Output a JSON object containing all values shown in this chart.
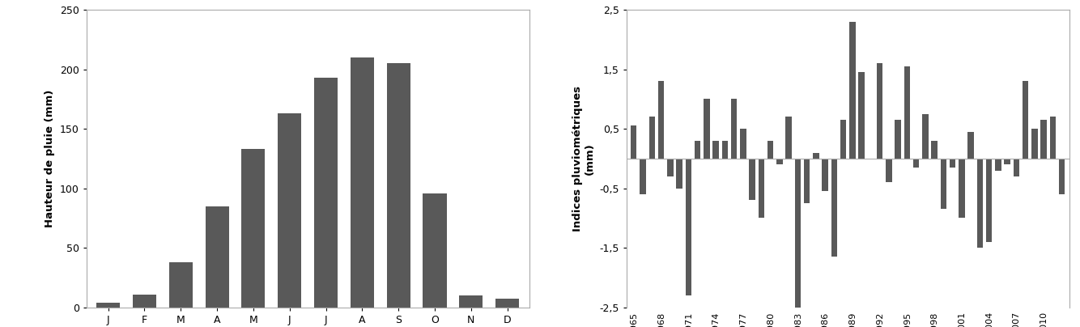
{
  "bar_chart": {
    "months": [
      "J",
      "F",
      "M",
      "A",
      "M",
      "J",
      "J",
      "A",
      "S",
      "O",
      "N",
      "D"
    ],
    "values": [
      4,
      11,
      38,
      85,
      133,
      163,
      193,
      210,
      205,
      96,
      10,
      7
    ],
    "bar_color": "#595959",
    "ylabel": "Hauteur de pluie (mm)",
    "ylim": [
      0,
      250
    ],
    "yticks": [
      0,
      50,
      100,
      150,
      200,
      250
    ]
  },
  "index_chart": {
    "years": [
      1965,
      1966,
      1967,
      1968,
      1969,
      1970,
      1971,
      1972,
      1973,
      1974,
      1975,
      1976,
      1977,
      1978,
      1979,
      1980,
      1981,
      1982,
      1983,
      1984,
      1985,
      1986,
      1987,
      1988,
      1989,
      1990,
      1991,
      1992,
      1993,
      1994,
      1995,
      1996,
      1997,
      1998,
      1999,
      2000,
      2001,
      2002,
      2003,
      2004,
      2005,
      2006,
      2007,
      2008,
      2009,
      2010,
      2011,
      2012
    ],
    "values": [
      0.55,
      -0.6,
      0.7,
      1.3,
      -0.3,
      -0.5,
      -2.3,
      0.3,
      1.0,
      0.3,
      0.3,
      1.0,
      0.5,
      -0.7,
      -1.0,
      0.3,
      -0.1,
      0.7,
      -2.55,
      -0.75,
      0.1,
      -0.55,
      -1.65,
      0.65,
      2.3,
      1.45,
      0.0,
      1.6,
      -0.4,
      0.65,
      1.55,
      -0.15,
      0.75,
      0.3,
      -0.85,
      -0.15,
      -1.0,
      0.45,
      -1.5,
      -1.4,
      -0.2,
      -0.1,
      -0.3,
      1.3,
      0.5,
      0.65,
      0.7,
      -0.6
    ],
    "bar_color": "#595959",
    "ylabel": "Indices pluviométriques\n(mm)",
    "ylim": [
      -2.5,
      2.5
    ],
    "yticks": [
      -2.5,
      -1.5,
      -0.5,
      0.5,
      1.5,
      2.5
    ],
    "ytick_labels": [
      "-2,5",
      "-1,5",
      "-0,5",
      "0,5",
      "1,5",
      "2,5"
    ],
    "xtick_labels": [
      "1965",
      "1968",
      "1971",
      "1974",
      "1977",
      "1980",
      "1983",
      "1986",
      "1989",
      "1992",
      "1995",
      "1998",
      "2001",
      "2004",
      "2007",
      "2010"
    ]
  },
  "background_color": "#ffffff",
  "panel_bg": "#ffffff",
  "spine_color": "#aaaaaa"
}
